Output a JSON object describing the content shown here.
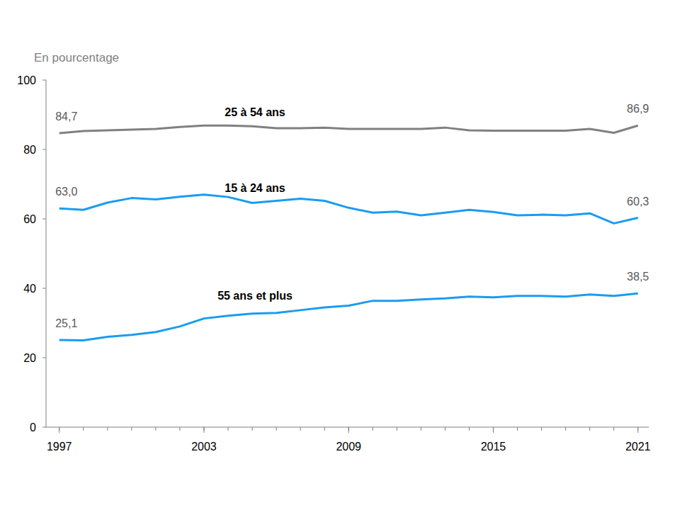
{
  "chart_data": {
    "type": "line",
    "y_label": "En pourcentage",
    "x": [
      1997,
      1998,
      1999,
      2000,
      2001,
      2002,
      2003,
      2004,
      2005,
      2006,
      2007,
      2008,
      2009,
      2010,
      2011,
      2012,
      2013,
      2014,
      2015,
      2016,
      2017,
      2018,
      2019,
      2020,
      2021
    ],
    "xlim": [
      1996.45,
      2021.45
    ],
    "xticks": [
      1997,
      2003,
      2009,
      2015,
      2021
    ],
    "ylim": [
      0,
      100
    ],
    "yticks": [
      0,
      20,
      40,
      60,
      80,
      100
    ],
    "grid": false,
    "data_labels": true,
    "series": [
      {
        "name": "25 à 54 ans",
        "color": "#808080",
        "values": [
          84.7,
          85.3,
          85.5,
          85.7,
          85.9,
          86.5,
          86.9,
          86.9,
          86.7,
          86.1,
          86.1,
          86.3,
          85.9,
          85.9,
          85.9,
          85.9,
          86.3,
          85.5,
          85.4,
          85.4,
          85.4,
          85.4,
          85.9,
          84.8,
          86.9
        ],
        "value_labels": [
          "84,7",
          null,
          null,
          null,
          null,
          null,
          null,
          null,
          null,
          null,
          null,
          null,
          null,
          null,
          null,
          null,
          null,
          null,
          null,
          null,
          null,
          null,
          null,
          null,
          "86,9"
        ]
      },
      {
        "name": "15 à 24 ans",
        "color": "#1a9cf0",
        "values": [
          63.0,
          62.6,
          64.7,
          66.0,
          65.6,
          66.4,
          67.0,
          66.3,
          64.6,
          65.2,
          65.8,
          65.2,
          63.2,
          61.8,
          62.1,
          61.0,
          61.8,
          62.6,
          62.0,
          61.0,
          61.2,
          61.0,
          61.6,
          58.7,
          60.3
        ],
        "value_labels": [
          "63,0",
          null,
          null,
          null,
          null,
          null,
          null,
          null,
          null,
          null,
          null,
          null,
          null,
          null,
          null,
          null,
          null,
          null,
          null,
          null,
          null,
          null,
          null,
          null,
          "60,3"
        ]
      },
      {
        "name": "55 ans et plus",
        "color": "#1a9cf0",
        "values": [
          25.1,
          25.0,
          26.0,
          26.6,
          27.4,
          29.0,
          31.3,
          32.1,
          32.7,
          32.9,
          33.7,
          34.5,
          35.0,
          36.4,
          36.4,
          36.8,
          37.1,
          37.6,
          37.4,
          37.8,
          37.8,
          37.6,
          38.2,
          37.8,
          38.5
        ],
        "value_labels": [
          "25,1",
          null,
          null,
          null,
          null,
          null,
          null,
          null,
          null,
          null,
          null,
          null,
          null,
          null,
          null,
          null,
          null,
          null,
          null,
          null,
          null,
          null,
          null,
          null,
          "38,5"
        ]
      }
    ]
  }
}
